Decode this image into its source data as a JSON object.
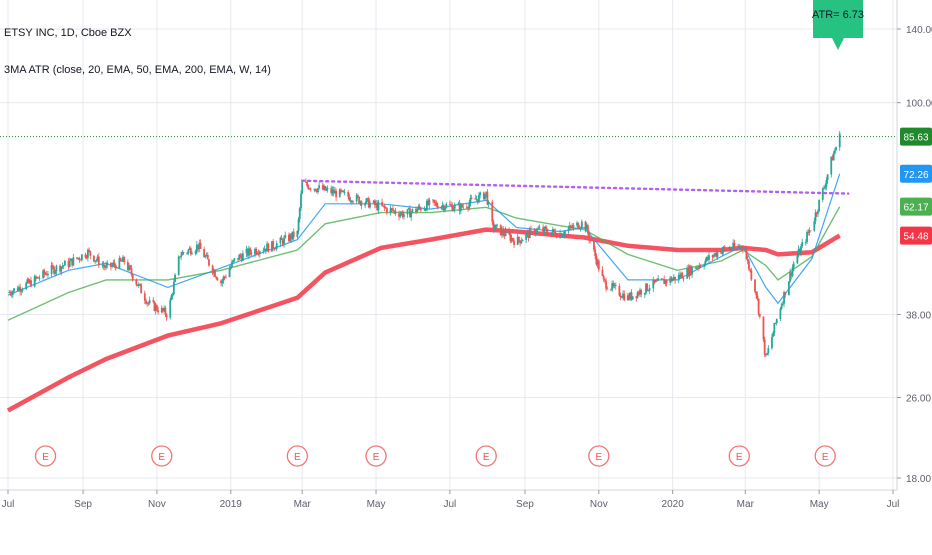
{
  "header": {
    "symbol_title": "ETSY INC, 1D, Cboe BZX",
    "indicator_label": "3MA ATR (close, 20, EMA, 50, EMA, 200, EMA, W, 14)"
  },
  "atr_marker": {
    "label": "ATR= 6.73",
    "color": "#26c281"
  },
  "colors": {
    "price_up": "#26a69a",
    "price_down": "#ef5350",
    "ema20": "#2196f3",
    "ema50": "#4caf50",
    "ema200": "#f23645",
    "trendline": "#b45ff0",
    "last_price_line": "#1e8a2b",
    "earnings": "#ef5350",
    "grid": "#e6e9ef",
    "axis_text": "#5d606b"
  },
  "icons": {
    "earnings_marker": "earnings-E-circle-icon",
    "atr_flag": "speech-flag-icon"
  },
  "chart_data": {
    "type": "candlestick",
    "scale": "log",
    "x_tick_labels": [
      "Jul",
      "Sep",
      "Nov",
      "2019",
      "Mar",
      "May",
      "Jul",
      "Sep",
      "Nov",
      "2020",
      "Mar",
      "May",
      "Jul"
    ],
    "y_tick_labels": [
      "140.00",
      "100.00",
      "38.00",
      "26.00",
      "18.00"
    ],
    "price_labels": [
      {
        "label": "85.63",
        "value": 85.63,
        "series": "close",
        "color": "#1e8a2b"
      },
      {
        "label": "72.26",
        "value": 72.26,
        "series": "EMA 20",
        "color": "#2196f3"
      },
      {
        "label": "62.17",
        "value": 62.17,
        "series": "EMA 50",
        "color": "#4caf50"
      },
      {
        "label": "54.48",
        "value": 54.48,
        "series": "EMA 200",
        "color": "#f23645"
      }
    ],
    "earnings_months": [
      "Jul",
      "Nov",
      "Mar",
      "May",
      "Aug",
      "Nov",
      "Feb",
      "May"
    ],
    "close_path": [
      [
        "2018-07-01",
        42.0
      ],
      [
        "2018-07-20",
        44.0
      ],
      [
        "2018-08-05",
        46.5
      ],
      [
        "2018-08-20",
        48.0
      ],
      [
        "2018-09-05",
        50.5
      ],
      [
        "2018-09-20",
        47.0
      ],
      [
        "2018-10-05",
        48.5
      ],
      [
        "2018-10-25",
        40.0
      ],
      [
        "2018-11-10",
        38.0
      ],
      [
        "2018-11-20",
        50.0
      ],
      [
        "2018-12-05",
        52.0
      ],
      [
        "2018-12-24",
        44.0
      ],
      [
        "2019-01-05",
        49.0
      ],
      [
        "2019-01-20",
        51.0
      ],
      [
        "2019-02-05",
        52.0
      ],
      [
        "2019-02-25",
        55.0
      ],
      [
        "2019-03-01",
        69.0
      ],
      [
        "2019-03-20",
        67.0
      ],
      [
        "2019-04-10",
        65.0
      ],
      [
        "2019-05-05",
        62.0
      ],
      [
        "2019-05-25",
        60.0
      ],
      [
        "2019-06-15",
        63.0
      ],
      [
        "2019-07-10",
        62.0
      ],
      [
        "2019-07-31",
        66.0
      ],
      [
        "2019-08-05",
        57.0
      ],
      [
        "2019-08-25",
        53.0
      ],
      [
        "2019-09-10",
        56.0
      ],
      [
        "2019-09-30",
        55.0
      ],
      [
        "2019-10-20",
        58.0
      ],
      [
        "2019-11-05",
        44.0
      ],
      [
        "2019-11-25",
        41.0
      ],
      [
        "2019-12-15",
        43.5
      ],
      [
        "2020-01-05",
        45.0
      ],
      [
        "2020-01-25",
        48.0
      ],
      [
        "2020-02-10",
        51.0
      ],
      [
        "2020-02-28",
        52.0
      ],
      [
        "2020-03-10",
        42.0
      ],
      [
        "2020-03-18",
        31.0
      ],
      [
        "2020-03-28",
        38.0
      ],
      [
        "2020-04-10",
        48.0
      ],
      [
        "2020-04-25",
        57.0
      ],
      [
        "2020-05-05",
        68.0
      ],
      [
        "2020-05-12",
        78.0
      ],
      [
        "2020-05-18",
        85.63
      ]
    ],
    "ema_paths": {
      "EMA 20": [
        [
          "2018-07-01",
          41.5
        ],
        [
          "2018-08-20",
          46.5
        ],
        [
          "2018-09-20",
          48.0
        ],
        [
          "2018-11-10",
          43.0
        ],
        [
          "2018-12-24",
          47.0
        ],
        [
          "2019-02-25",
          53.5
        ],
        [
          "2019-03-20",
          63.0
        ],
        [
          "2019-05-05",
          63.0
        ],
        [
          "2019-06-15",
          61.5
        ],
        [
          "2019-07-31",
          64.0
        ],
        [
          "2019-08-25",
          56.5
        ],
        [
          "2019-09-30",
          55.5
        ],
        [
          "2019-10-20",
          56.5
        ],
        [
          "2019-11-25",
          44.5
        ],
        [
          "2020-01-05",
          44.5
        ],
        [
          "2020-02-10",
          49.5
        ],
        [
          "2020-02-28",
          52.0
        ],
        [
          "2020-03-18",
          43.0
        ],
        [
          "2020-03-28",
          40.0
        ],
        [
          "2020-04-25",
          49.0
        ],
        [
          "2020-05-18",
          72.26
        ]
      ],
      "EMA 50": [
        [
          "2018-07-01",
          37.0
        ],
        [
          "2018-08-20",
          42.0
        ],
        [
          "2018-09-20",
          44.5
        ],
        [
          "2018-11-10",
          44.5
        ],
        [
          "2018-12-24",
          46.5
        ],
        [
          "2019-02-25",
          51.0
        ],
        [
          "2019-03-20",
          57.5
        ],
        [
          "2019-05-05",
          60.5
        ],
        [
          "2019-06-15",
          60.5
        ],
        [
          "2019-07-31",
          62.0
        ],
        [
          "2019-08-25",
          59.0
        ],
        [
          "2019-09-30",
          57.0
        ],
        [
          "2019-10-20",
          56.0
        ],
        [
          "2019-11-25",
          50.0
        ],
        [
          "2020-01-05",
          46.5
        ],
        [
          "2020-02-10",
          48.5
        ],
        [
          "2020-02-28",
          51.0
        ],
        [
          "2020-03-18",
          47.5
        ],
        [
          "2020-03-28",
          44.5
        ],
        [
          "2020-04-25",
          49.5
        ],
        [
          "2020-05-18",
          62.17
        ]
      ],
      "EMA 200": [
        [
          "2018-07-01",
          24.5
        ],
        [
          "2018-08-20",
          28.5
        ],
        [
          "2018-09-20",
          31.0
        ],
        [
          "2018-11-10",
          34.5
        ],
        [
          "2018-12-24",
          36.5
        ],
        [
          "2019-02-25",
          41.0
        ],
        [
          "2019-03-20",
          46.0
        ],
        [
          "2019-05-05",
          51.5
        ],
        [
          "2019-06-15",
          53.5
        ],
        [
          "2019-07-31",
          56.0
        ],
        [
          "2019-08-25",
          55.5
        ],
        [
          "2019-09-30",
          54.5
        ],
        [
          "2019-10-20",
          54.0
        ],
        [
          "2019-11-25",
          52.0
        ],
        [
          "2020-01-05",
          51.0
        ],
        [
          "2020-02-10",
          51.0
        ],
        [
          "2020-02-28",
          51.5
        ],
        [
          "2020-03-18",
          51.0
        ],
        [
          "2020-03-28",
          50.0
        ],
        [
          "2020-04-25",
          50.5
        ],
        [
          "2020-05-18",
          54.48
        ]
      ]
    },
    "trendline": {
      "start": [
        "2019-03-01",
        70.0
      ],
      "end": [
        "2020-05-25",
        66.0
      ]
    },
    "last_price": 85.63,
    "grid": true
  }
}
